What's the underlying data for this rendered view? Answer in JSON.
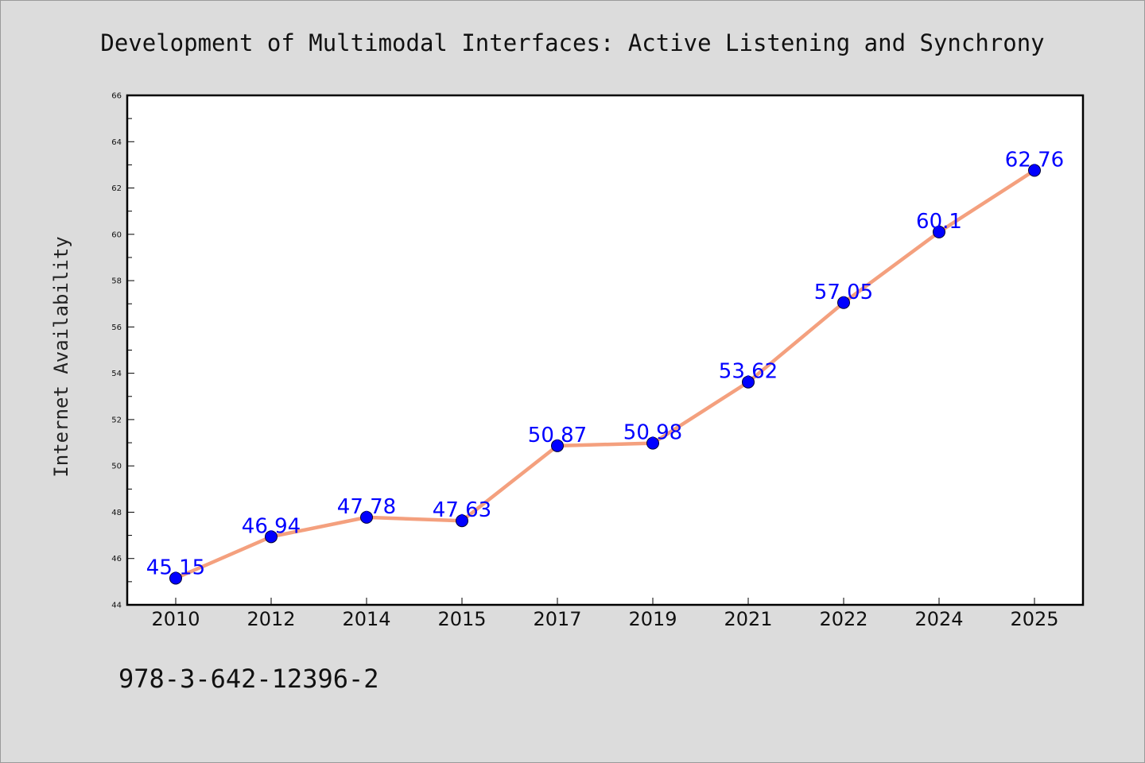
{
  "chart_data": {
    "type": "line",
    "title": "Development of Multimodal Interfaces: Active Listening and Synchrony",
    "xlabel": "",
    "ylabel": "Internet Availability",
    "categories": [
      "2010",
      "2012",
      "2014",
      "2015",
      "2017",
      "2019",
      "2021",
      "2022",
      "2024",
      "2025"
    ],
    "series": [
      {
        "values": [
          45.15,
          46.94,
          47.78,
          47.63,
          50.87,
          50.98,
          53.62,
          57.05,
          60.1,
          62.76
        ],
        "data_labels": [
          "45.15",
          "46.94",
          "47.78",
          "47.63",
          "50.87",
          "50.98",
          "53.62",
          "57.05",
          "60.1",
          "62.76"
        ],
        "line_color": "#f4a07e",
        "marker_color": "#0000ff",
        "label_color": "#0000ff"
      }
    ],
    "ylim": [
      44,
      66
    ],
    "yticks": [
      "44",
      "46",
      "48",
      "50",
      "52",
      "54",
      "56",
      "58",
      "60",
      "62",
      "64",
      "66"
    ],
    "grid": false,
    "legend": "none"
  },
  "footnote": "978-3-642-12396-2",
  "colors": {
    "figure_background": "#dcdcdc",
    "plot_background": "#ffffff",
    "axes_frame": "#000000"
  }
}
